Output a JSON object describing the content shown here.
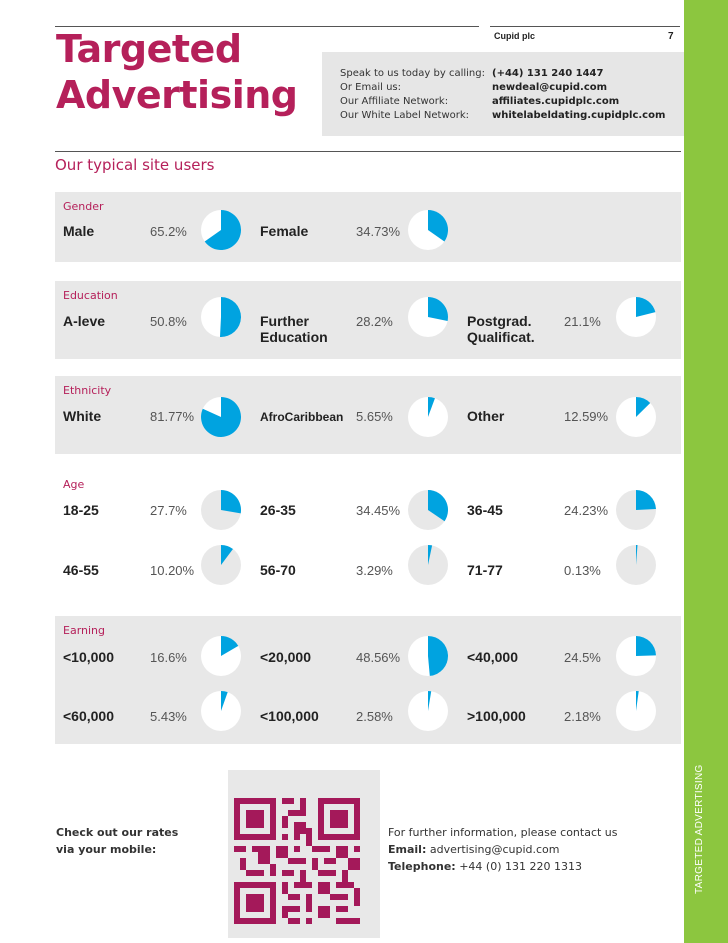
{
  "header": {
    "title_line1": "Targeted",
    "title_line2": "Advertising",
    "company": "Cupid plc",
    "page_number": "7"
  },
  "contacts": [
    {
      "label": "Speak to us today by calling:",
      "value": "(+44) 131 240 1447"
    },
    {
      "label": "Or Email us:",
      "value": "newdeal@cupid.com"
    },
    {
      "label": "Our Affiliate Network:",
      "value": "affiliates.cupidplc.com"
    },
    {
      "label": "Our White Label Network:",
      "value": "whitelabeldating.cupidplc.com"
    }
  ],
  "subtitle": "Our typical site users",
  "colors": {
    "accent": "#b5205a",
    "pie": "#00a3e0",
    "green": "#8cc63f"
  },
  "categories": {
    "gender": {
      "title": "Gender",
      "items": [
        {
          "label": "Male",
          "pct": "65.2%",
          "value": 65.2
        },
        {
          "label": "Female",
          "pct": "34.73%",
          "value": 34.73
        }
      ]
    },
    "education": {
      "title": "Education",
      "items": [
        {
          "label": "A-leve",
          "pct": "50.8%",
          "value": 50.8
        },
        {
          "label": "Further Education",
          "pct": "28.2%",
          "value": 28.2
        },
        {
          "label": "Postgrad. Qualificat.",
          "pct": "21.1%",
          "value": 21.1
        }
      ]
    },
    "ethnicity": {
      "title": "Ethnicity",
      "items": [
        {
          "label": "White",
          "pct": "81.77%",
          "value": 81.77
        },
        {
          "label": "AfroCaribbean",
          "pct": "5.65%",
          "value": 5.65
        },
        {
          "label": "Other",
          "pct": "12.59%",
          "value": 12.59
        }
      ]
    },
    "age": {
      "title": "Age",
      "items": [
        {
          "label": "18-25",
          "pct": "27.7%",
          "value": 27.7
        },
        {
          "label": "26-35",
          "pct": "34.45%",
          "value": 34.45
        },
        {
          "label": "36-45",
          "pct": "24.23%",
          "value": 24.23
        },
        {
          "label": "46-55",
          "pct": "10.20%",
          "value": 10.2
        },
        {
          "label": "56-70",
          "pct": "3.29%",
          "value": 3.29
        },
        {
          "label": "71-77",
          "pct": "0.13%",
          "value": 0.13
        }
      ]
    },
    "earning": {
      "title": "Earning",
      "items": [
        {
          "label": "<10,000",
          "pct": "16.6%",
          "value": 16.6
        },
        {
          "label": "<20,000",
          "pct": "48.56%",
          "value": 48.56
        },
        {
          "label": "<40,000",
          "pct": "24.5%",
          "value": 24.5
        },
        {
          "label": "<60,000",
          "pct": "5.43%",
          "value": 5.43
        },
        {
          "label": "<100,000",
          "pct": "2.58%",
          "value": 2.58
        },
        {
          "label": ">100,000",
          "pct": "2.18%",
          "value": 2.18
        }
      ]
    }
  },
  "footer": {
    "mobile_line1": "Check out our rates",
    "mobile_line2": "via your mobile:",
    "further_line": "For further information, please contact us",
    "email_label": "Email:",
    "email_value": "advertising@cupid.com",
    "phone_label": "Telephone:",
    "phone_value": "+44 (0) 131 220 1313"
  },
  "side_label": "TARGETED ADVERTISING"
}
